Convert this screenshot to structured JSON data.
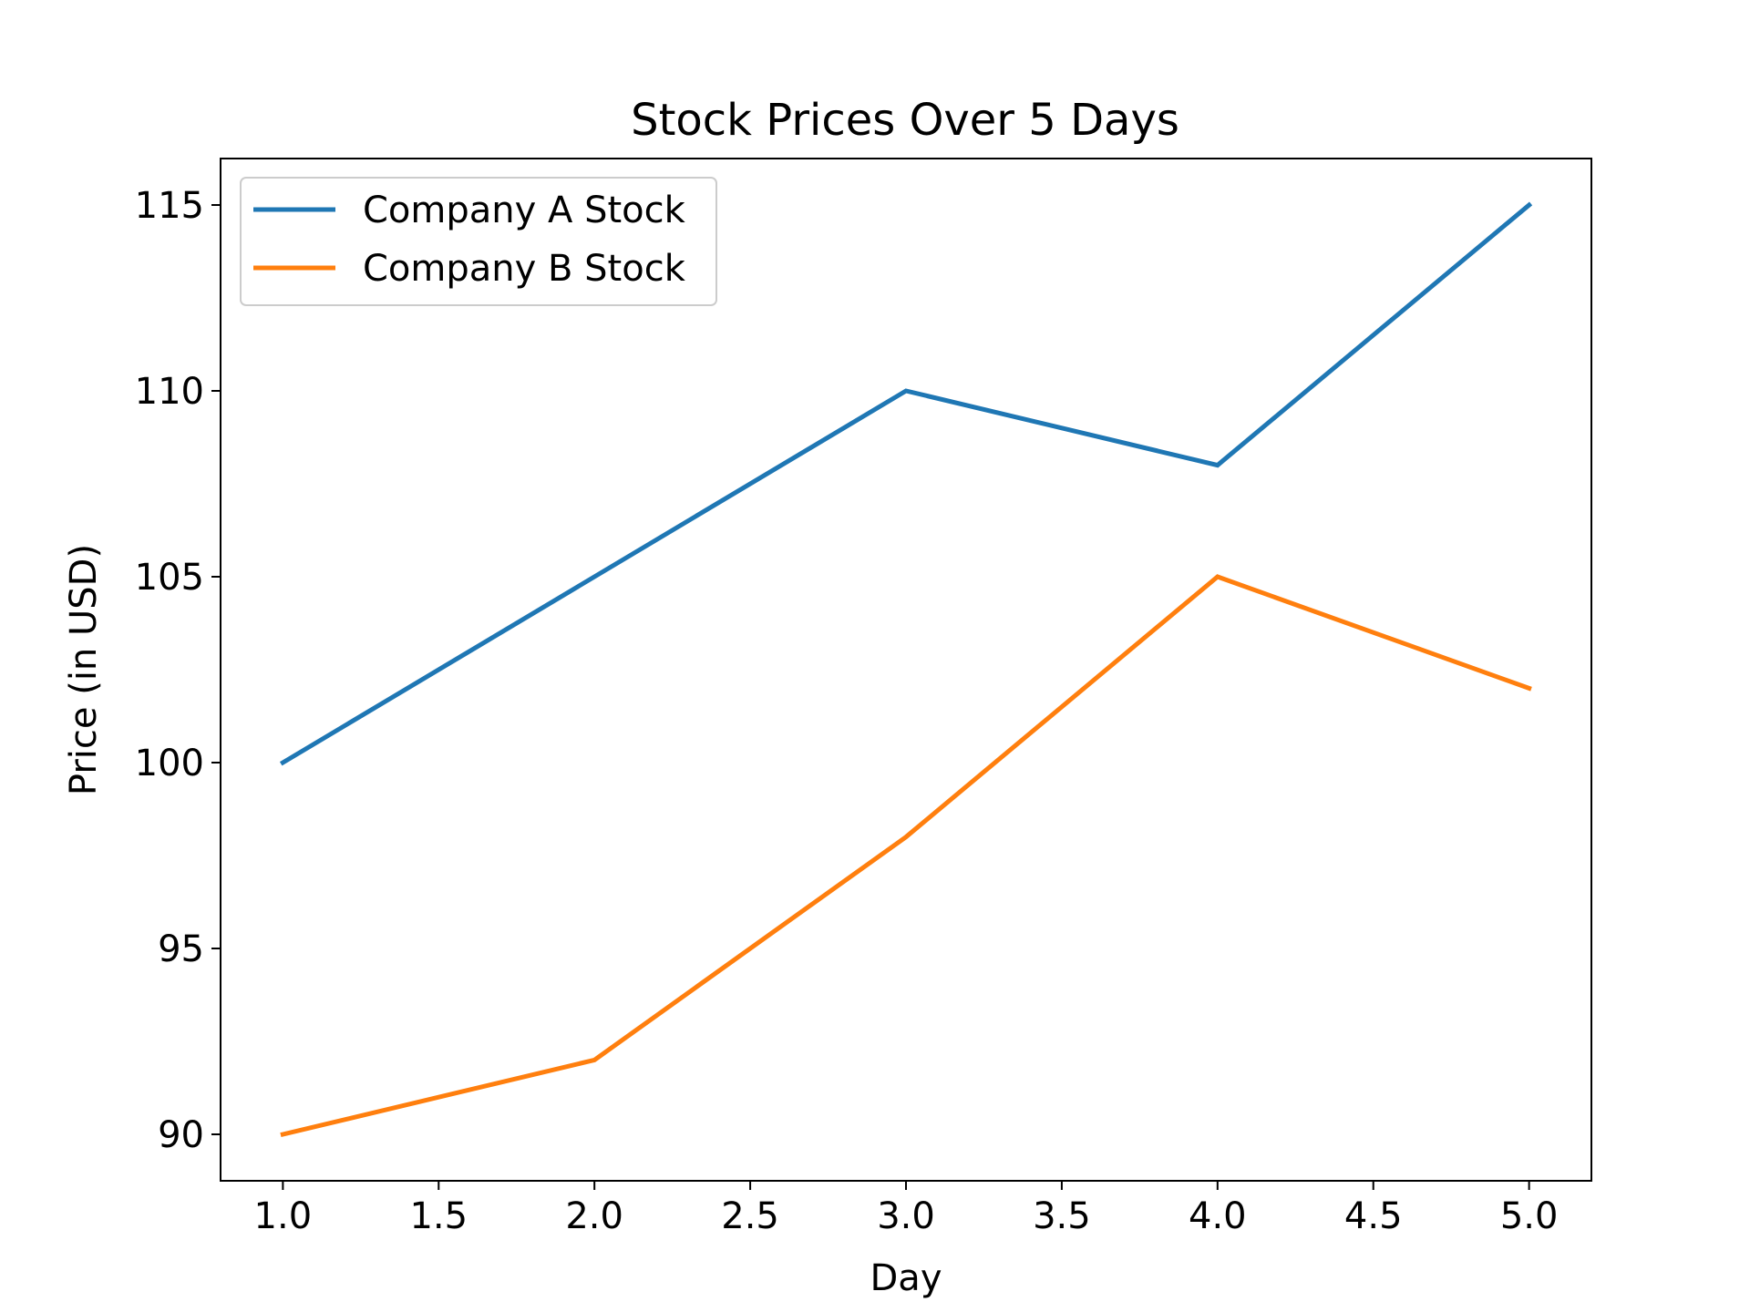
{
  "chart_data": {
    "type": "line",
    "title": "Stock Prices Over 5 Days",
    "xlabel": "Day",
    "ylabel": "Price (in USD)",
    "x": [
      1,
      2,
      3,
      4,
      5
    ],
    "xlim": [
      0.8,
      5.2
    ],
    "ylim": [
      88.75,
      116.25
    ],
    "xticks": [
      1.0,
      1.5,
      2.0,
      2.5,
      3.0,
      3.5,
      4.0,
      4.5,
      5.0
    ],
    "xtick_labels": [
      "1.0",
      "1.5",
      "2.0",
      "2.5",
      "3.0",
      "3.5",
      "4.0",
      "4.5",
      "5.0"
    ],
    "yticks": [
      90,
      95,
      100,
      105,
      110,
      115
    ],
    "ytick_labels": [
      "90",
      "95",
      "100",
      "105",
      "110",
      "115"
    ],
    "grid": false,
    "legend_position": "top-left",
    "series": [
      {
        "name": "Company A Stock",
        "color": "#1f77b4",
        "values": [
          100,
          105,
          110,
          108,
          115
        ]
      },
      {
        "name": "Company B Stock",
        "color": "#ff7f0e",
        "values": [
          90,
          92,
          98,
          105,
          102
        ]
      }
    ]
  }
}
